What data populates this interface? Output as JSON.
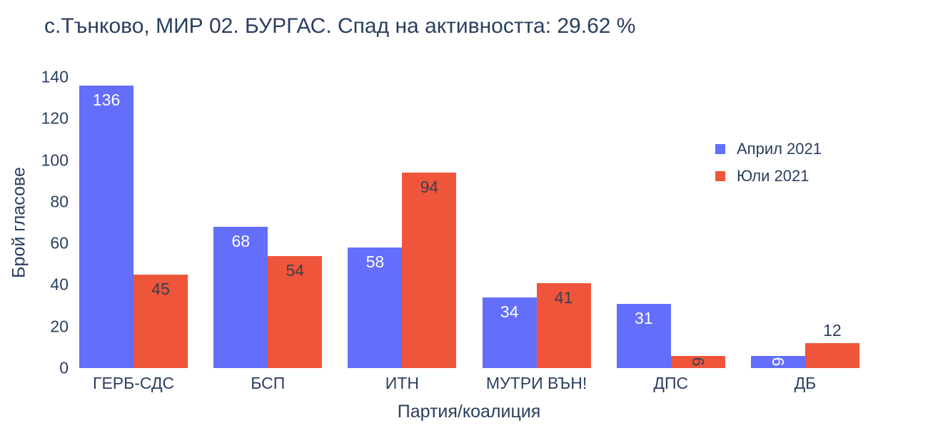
{
  "colors": {
    "text": "#2a3f5f",
    "series_blue": "#636efa",
    "series_red": "#ef553b",
    "background": "#ffffff"
  },
  "chart_data": {
    "type": "bar",
    "title": "с.Тънково, МИР 02. БУРГАС. Спад на активността: 29.62 %",
    "xlabel": "Партия/коалиция",
    "ylabel": "Брой гласове",
    "categories": [
      "ГЕРБ-СДС",
      "БСП",
      "ИТН",
      "МУТРИ ВЪН!",
      "ДПС",
      "ДБ"
    ],
    "series": [
      {
        "name": "Април 2021",
        "color": "#636efa",
        "values": [
          136,
          68,
          58,
          34,
          31,
          6
        ],
        "label_inside_color": "#ffffff"
      },
      {
        "name": "Юли 2021",
        "color": "#ef553b",
        "values": [
          45,
          54,
          94,
          41,
          6,
          12
        ],
        "label_inside_color": "#36424e"
      }
    ],
    "label_placements": [
      [
        "inside",
        "inside",
        "inside",
        "inside",
        "inside",
        "inside-rotated"
      ],
      [
        "inside",
        "inside",
        "inside",
        "inside",
        "inside-rotated",
        "outside"
      ]
    ],
    "outside_label_color": "#2a3f5f",
    "ylim": [
      0,
      140
    ],
    "yticks": [
      0,
      20,
      40,
      60,
      80,
      100,
      120,
      140
    ],
    "grid": false,
    "legend_position": "right",
    "barmode": "group"
  }
}
